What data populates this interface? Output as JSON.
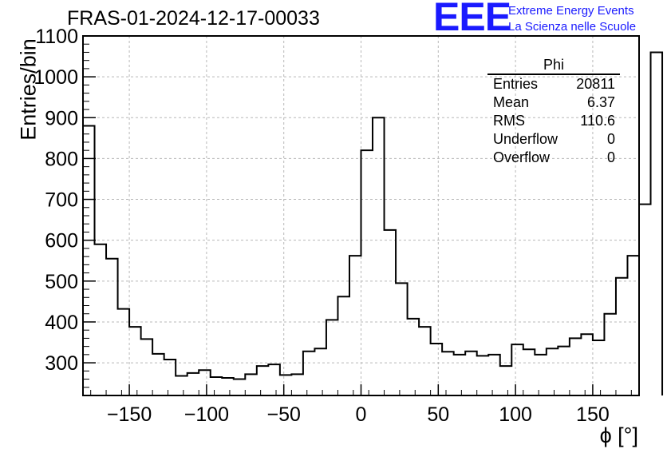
{
  "chart_data": {
    "type": "histogram",
    "title": "FRAS-01-2024-12-17-00033",
    "xlabel": "ϕ [°]",
    "ylabel": "Entries/bin",
    "xlim": [
      -180,
      180
    ],
    "ylim": [
      220,
      1100
    ],
    "bin_width": 7.5,
    "grid": true,
    "xticks": [
      -150,
      -100,
      -50,
      0,
      50,
      100,
      150
    ],
    "xtick_labels": [
      "−150",
      "−100",
      "−50",
      "0",
      "50",
      "100",
      "150"
    ],
    "yticks": [
      300,
      400,
      500,
      600,
      700,
      800,
      900,
      1000,
      1100
    ],
    "ytick_labels": [
      "300",
      "400",
      "500",
      "600",
      "700",
      "800",
      "900",
      "1000",
      "1100"
    ],
    "bin_edges_start": -180,
    "values": [
      880,
      590,
      555,
      432,
      388,
      358,
      322,
      308,
      268,
      275,
      282,
      265,
      263,
      260,
      272,
      292,
      296,
      270,
      272,
      328,
      335,
      405,
      462,
      562,
      820,
      900,
      625,
      495,
      408,
      388,
      347,
      327,
      320,
      328,
      317,
      320,
      292,
      345,
      333,
      320,
      335,
      340,
      360,
      370,
      355,
      420,
      508,
      562,
      688,
      1060
    ],
    "stats_box": {
      "name": "Phi",
      "rows": [
        {
          "label": "Entries",
          "value": "20811"
        },
        {
          "label": "Mean",
          "value": "6.37"
        },
        {
          "label": "RMS",
          "value": "110.6"
        },
        {
          "label": "Underflow",
          "value": "0"
        },
        {
          "label": "Overflow",
          "value": "0"
        }
      ]
    }
  },
  "logo": {
    "mark": "EEE",
    "line1": "Extreme Energy Events",
    "line2": "La Scienza nelle Scuole"
  },
  "colors": {
    "line": "#000000",
    "grid": "#b8b8b8",
    "logo": "#1a1aff"
  }
}
